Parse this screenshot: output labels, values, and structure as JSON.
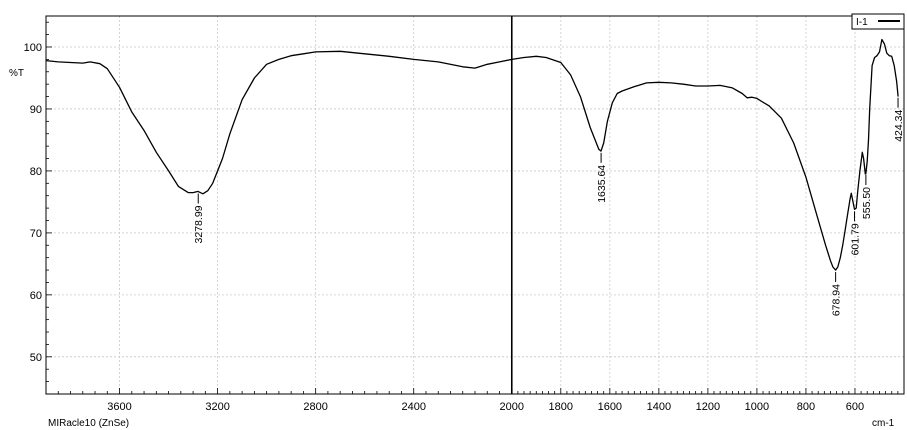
{
  "chart_data": {
    "type": "line",
    "ylabel": "%T",
    "xunit": "cm-1",
    "instrument": "MIRacle10 (ZnSe)",
    "legend": {
      "entries": [
        "I-1"
      ],
      "placement": "top-right"
    },
    "xlim": [
      3900,
      400
    ],
    "ylim": [
      44,
      105
    ],
    "xticks": [
      3600,
      3200,
      2800,
      2400,
      2000,
      1800,
      1600,
      1400,
      1200,
      1000,
      800,
      600
    ],
    "yticks": [
      50,
      60,
      70,
      80,
      90,
      100
    ],
    "grid": true,
    "vertical_marker": 2000,
    "series": [
      {
        "name": "I-1",
        "color": "#000000",
        "x": [
          3900,
          3850,
          3800,
          3750,
          3720,
          3680,
          3650,
          3600,
          3550,
          3500,
          3450,
          3400,
          3360,
          3320,
          3300,
          3280,
          3260,
          3240,
          3220,
          3200,
          3180,
          3150,
          3100,
          3050,
          3000,
          2950,
          2900,
          2850,
          2800,
          2700,
          2600,
          2500,
          2400,
          2300,
          2200,
          2150,
          2100,
          2050,
          2000,
          1950,
          1900,
          1860,
          1800,
          1760,
          1720,
          1700,
          1680,
          1660,
          1645,
          1636,
          1625,
          1610,
          1590,
          1570,
          1550,
          1500,
          1450,
          1400,
          1350,
          1300,
          1250,
          1200,
          1150,
          1100,
          1060,
          1040,
          1020,
          1000,
          980,
          950,
          900,
          850,
          800,
          760,
          720,
          700,
          690,
          679,
          670,
          660,
          650,
          640,
          630,
          620,
          615,
          608,
          602,
          595,
          588,
          580,
          570,
          565,
          558,
          556,
          550,
          545,
          540,
          530,
          520,
          510,
          500,
          490,
          480,
          470,
          460,
          450,
          440,
          430,
          424
        ],
        "y": [
          97.8,
          97.6,
          97.5,
          97.4,
          97.6,
          97.3,
          96.5,
          93.5,
          89.5,
          86.5,
          83,
          80,
          77.5,
          76.5,
          76.5,
          76.7,
          76.3,
          76.8,
          78,
          80,
          82,
          86,
          91.5,
          95,
          97.2,
          98,
          98.6,
          98.9,
          99.2,
          99.3,
          98.9,
          98.5,
          98,
          97.6,
          96.8,
          96.6,
          97.2,
          97.6,
          98,
          98.3,
          98.5,
          98.3,
          97.5,
          95.5,
          92,
          89.5,
          87,
          85,
          83.5,
          83.2,
          84.5,
          88,
          91,
          92.5,
          92.9,
          93.6,
          94.2,
          94.3,
          94.2,
          94,
          93.7,
          93.7,
          93.8,
          93.4,
          92.5,
          91.8,
          91.9,
          91.7,
          91.2,
          90.5,
          88.5,
          84.5,
          79,
          73.5,
          68,
          65.5,
          64.5,
          64,
          64.5,
          66,
          68,
          70.5,
          73,
          75.5,
          76.4,
          75,
          73.8,
          74,
          77,
          80,
          83,
          82,
          79.5,
          79.5,
          81.5,
          85,
          90,
          97,
          98.3,
          98.6,
          99.2,
          101.2,
          100.5,
          99,
          98.6,
          98.5,
          97,
          94.5,
          92
        ]
      }
    ],
    "peaks": [
      {
        "x": 3278.99,
        "label": "3278.99"
      },
      {
        "x": 1635.64,
        "label": "1635.64"
      },
      {
        "x": 678.94,
        "label": "678.94"
      },
      {
        "x": 601.79,
        "label": "601.79"
      },
      {
        "x": 555.5,
        "label": "555.50"
      },
      {
        "x": 424.34,
        "label": "424.34"
      }
    ]
  }
}
